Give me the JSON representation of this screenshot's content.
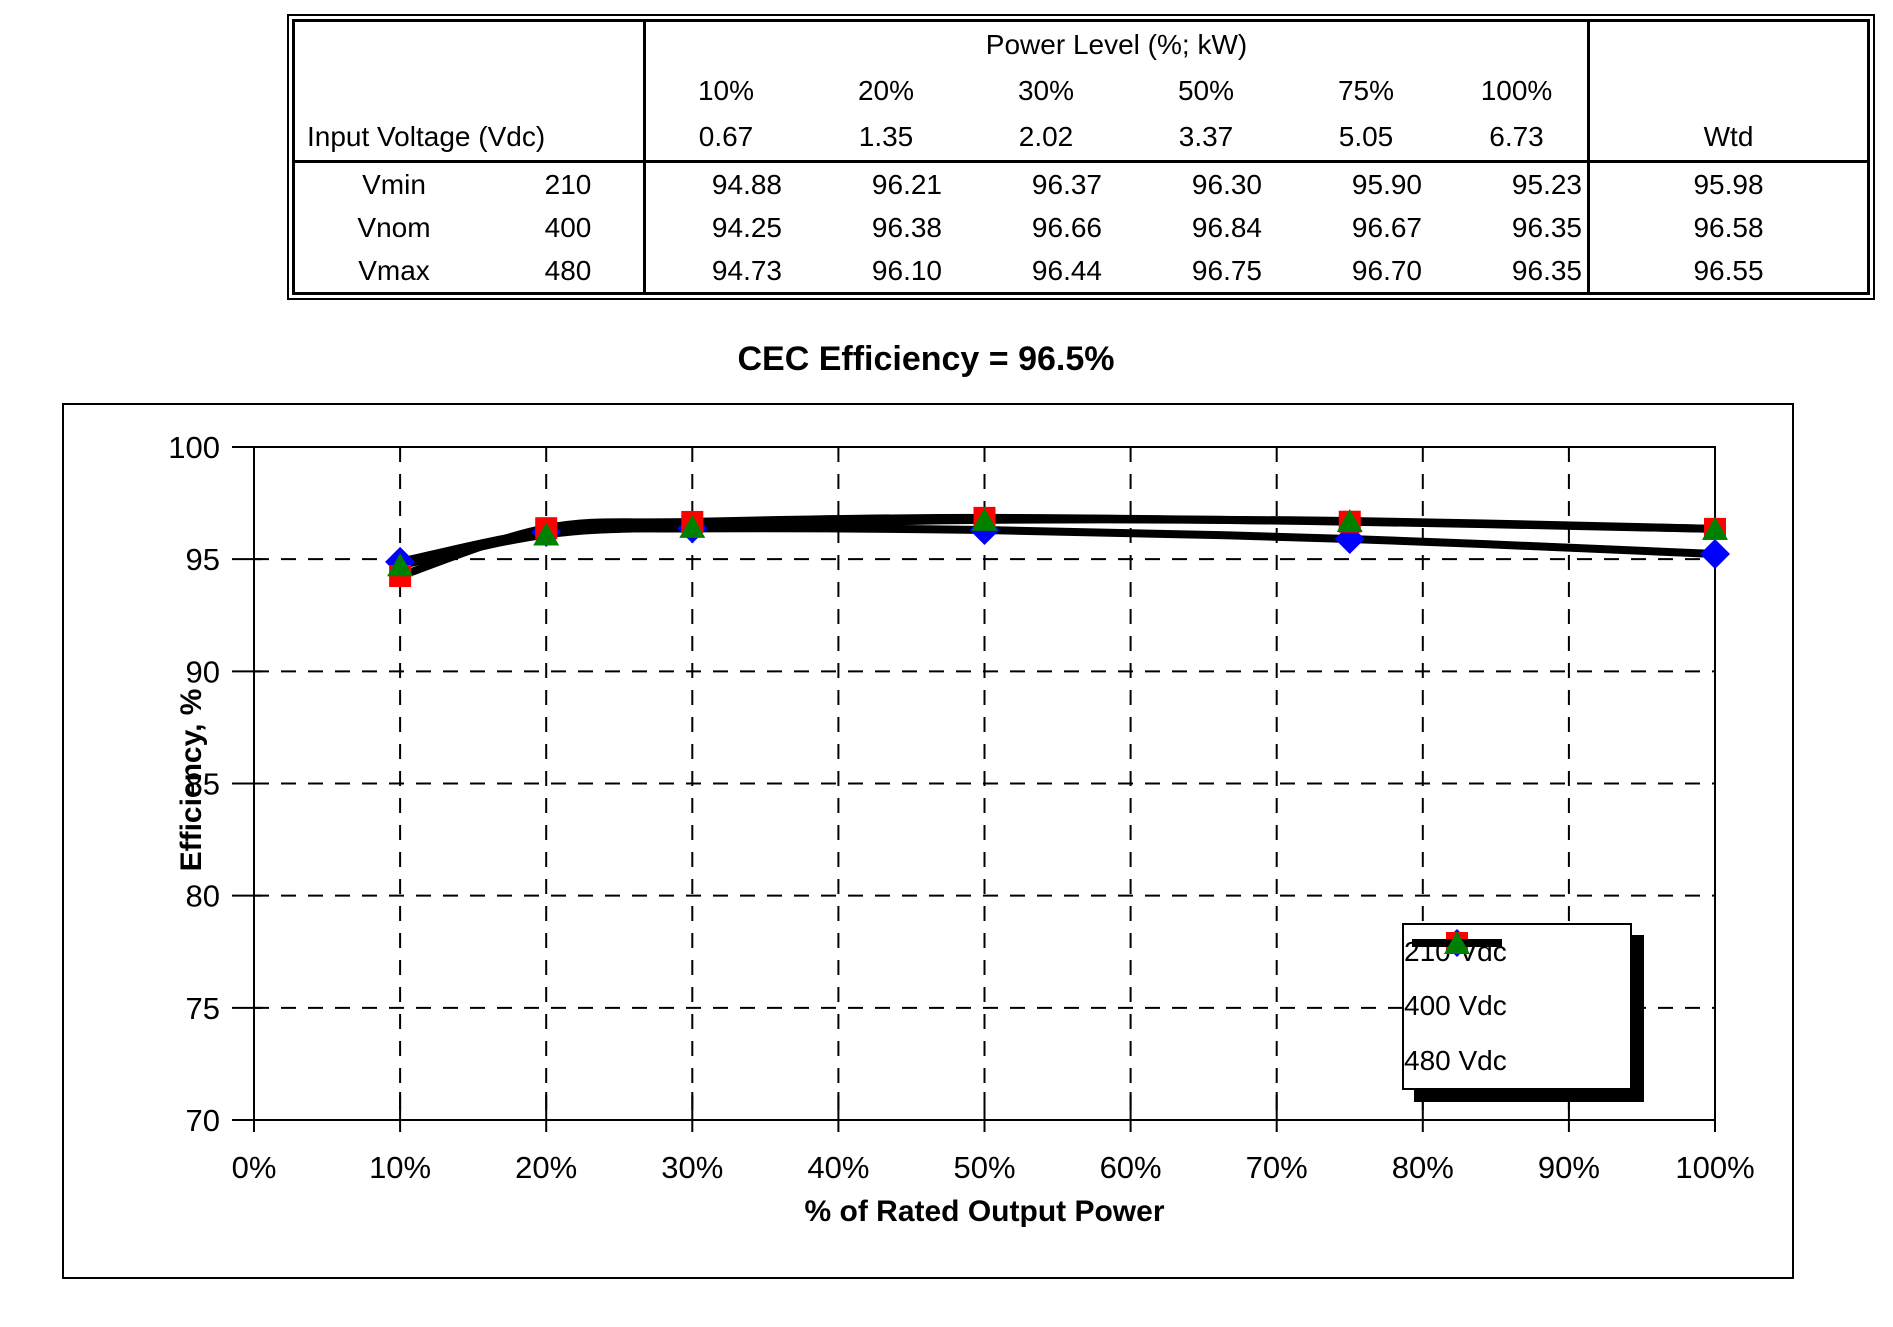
{
  "table": {
    "header_group": "Power Level (%; kW)",
    "row_header_label": "Input Voltage (Vdc)",
    "wtd_label": "Wtd",
    "power_levels_pct": [
      "10%",
      "20%",
      "30%",
      "50%",
      "75%",
      "100%"
    ],
    "power_levels_kw": [
      "0.67",
      "1.35",
      "2.02",
      "3.37",
      "5.05",
      "6.73"
    ],
    "rows": [
      {
        "name": "Vmin",
        "voltage": "210",
        "values": [
          "94.88",
          "96.21",
          "96.37",
          "96.30",
          "95.90",
          "95.23"
        ],
        "wtd": "95.98"
      },
      {
        "name": "Vnom",
        "voltage": "400",
        "values": [
          "94.25",
          "96.38",
          "96.66",
          "96.84",
          "96.67",
          "96.35"
        ],
        "wtd": "96.58"
      },
      {
        "name": "Vmax",
        "voltage": "480",
        "values": [
          "94.73",
          "96.10",
          "96.44",
          "96.75",
          "96.70",
          "96.35"
        ],
        "wtd": "96.55"
      }
    ]
  },
  "chart_data": {
    "type": "line",
    "title": "CEC Efficiency = 96.5%",
    "xlabel": "% of Rated Output Power",
    "ylabel": "Efficiency, %",
    "x": [
      10,
      20,
      30,
      50,
      75,
      100
    ],
    "xlim": [
      0,
      100
    ],
    "ylim": [
      70,
      100
    ],
    "x_tick_step": 10,
    "y_tick_step": 5,
    "x_tick_labels": [
      "0%",
      "10%",
      "20%",
      "30%",
      "40%",
      "50%",
      "60%",
      "70%",
      "80%",
      "90%",
      "100%"
    ],
    "y_tick_labels": [
      "70",
      "75",
      "80",
      "85",
      "90",
      "95",
      "100"
    ],
    "grid": "dashed",
    "legend_position": "lower right",
    "line_color": "#000000",
    "series": [
      {
        "name": "210 Vdc",
        "marker": "diamond",
        "marker_color": "#0000ff",
        "values": [
          94.88,
          96.21,
          96.37,
          96.3,
          95.9,
          95.23
        ]
      },
      {
        "name": "400 Vdc",
        "marker": "square",
        "marker_color": "#ff0000",
        "values": [
          94.25,
          96.38,
          96.66,
          96.84,
          96.67,
          96.35
        ]
      },
      {
        "name": "480 Vdc",
        "marker": "triangle",
        "marker_color": "#008000",
        "values": [
          94.73,
          96.1,
          96.44,
          96.75,
          96.7,
          96.35
        ]
      }
    ]
  }
}
